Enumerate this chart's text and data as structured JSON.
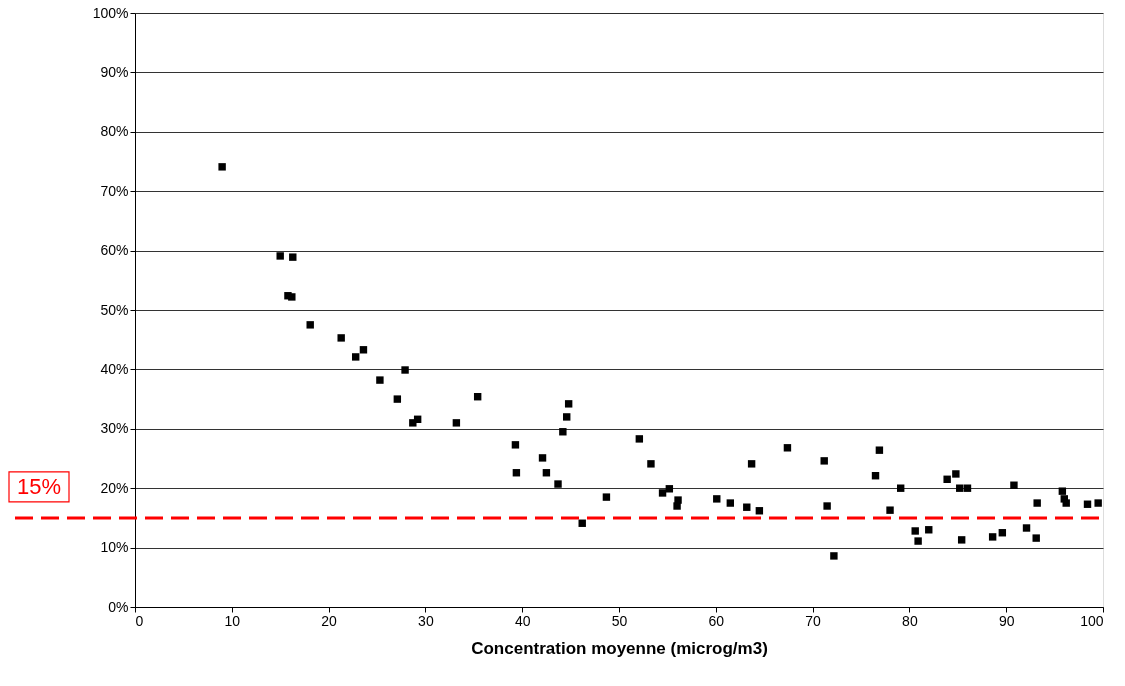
{
  "chart_data": {
    "type": "scatter",
    "xlabel": "Concentration moyenne (microg/m3)",
    "x": [
      9.0,
      15.0,
      16.3,
      15.8,
      16.2,
      18.1,
      21.3,
      22.8,
      23.6,
      25.3,
      27.1,
      27.9,
      28.7,
      29.2,
      33.2,
      35.4,
      39.3,
      39.4,
      42.1,
      42.5,
      43.7,
      44.2,
      44.6,
      44.8,
      46.2,
      48.7,
      52.1,
      53.3,
      54.5,
      55.2,
      56.0,
      56.1,
      60.1,
      61.5,
      63.2,
      63.7,
      64.5,
      67.4,
      71.2,
      71.5,
      72.2,
      76.5,
      76.9,
      78.0,
      79.1,
      80.6,
      80.9,
      82.0,
      83.9,
      84.8,
      85.2,
      85.4,
      86.0,
      88.6,
      89.6,
      90.8,
      92.1,
      93.1,
      93.2,
      95.8,
      96.0,
      96.2,
      98.4,
      99.5
    ],
    "series": [
      {
        "color": "#000000",
        "values": [
          74.1,
          59.1,
          58.9,
          52.4,
          52.2,
          47.5,
          45.3,
          42.1,
          43.3,
          38.2,
          35.0,
          39.9,
          31.0,
          31.6,
          31.0,
          35.4,
          27.3,
          22.6,
          25.1,
          22.6,
          20.7,
          29.5,
          32.0,
          34.2,
          14.1,
          18.5,
          28.3,
          24.1,
          19.2,
          19.9,
          17.0,
          18.0,
          18.2,
          17.5,
          16.8,
          24.1,
          16.2,
          26.8,
          24.6,
          17.0,
          8.6,
          22.1,
          26.4,
          16.3,
          20.0,
          12.8,
          11.1,
          13.0,
          21.5,
          22.4,
          20.0,
          11.3,
          20.0,
          11.8,
          12.5,
          20.5,
          13.3,
          11.6,
          17.5,
          19.5,
          18.2,
          17.5,
          17.3,
          17.5
        ]
      }
    ],
    "xlim": [
      0,
      100
    ],
    "xticks": [
      0,
      10,
      20,
      30,
      40,
      50,
      60,
      70,
      80,
      90,
      100
    ],
    "ylim": [
      0,
      100
    ],
    "yticks": [
      {
        "value": 0,
        "label": "0%"
      },
      {
        "value": 10,
        "label": "10%"
      },
      {
        "value": 20,
        "label": "20%"
      },
      {
        "value": 30,
        "label": "30%"
      },
      {
        "value": 40,
        "label": "40%"
      },
      {
        "value": 50,
        "label": "50%"
      },
      {
        "value": 60,
        "label": "60%"
      },
      {
        "value": 70,
        "label": "70%"
      },
      {
        "value": 80,
        "label": "80%"
      },
      {
        "value": 90,
        "label": "90%"
      },
      {
        "value": 100,
        "label": "100%"
      }
    ],
    "ref_lines": [
      {
        "axis": "y",
        "value": 15,
        "label": "15%",
        "color": "#ff0000",
        "line_style": "dashed"
      }
    ],
    "grid": "y",
    "marker": "square"
  }
}
